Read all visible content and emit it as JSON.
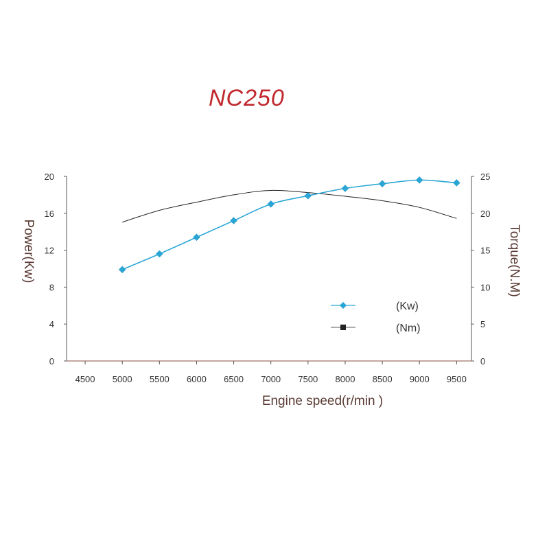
{
  "chart_data": {
    "type": "line",
    "title": "NC250",
    "xlabel": "Engine speed(r/min )",
    "ylabel_left": "Power(Kw)",
    "ylabel_right": "Torque(N.M)",
    "x_ticks": [
      4500,
      5000,
      5500,
      6000,
      6500,
      7000,
      7500,
      8000,
      8500,
      9000,
      9500
    ],
    "xlim": [
      4250,
      9700
    ],
    "ylim_left": [
      0,
      20
    ],
    "ylim_right": [
      0,
      25
    ],
    "y_left_ticks": [
      0,
      4,
      8,
      12,
      16,
      20
    ],
    "y_right_ticks": [
      0,
      5,
      10,
      15,
      20,
      25
    ],
    "grid": false,
    "legend_position": "lower-right",
    "series": [
      {
        "name": "(Kw)",
        "axis": "left",
        "color": "#2aa6d6",
        "marker": "diamond",
        "x": [
          5000,
          5500,
          6000,
          6500,
          7000,
          7500,
          8000,
          8500,
          9000,
          9500
        ],
        "values": [
          9.9,
          11.6,
          13.4,
          15.2,
          17.0,
          17.9,
          18.7,
          19.2,
          19.6,
          19.3
        ]
      },
      {
        "name": "(Nm)",
        "axis": "right",
        "color": "#222222",
        "marker": "square",
        "x": [
          5000,
          5500,
          6000,
          6500,
          7000,
          7500,
          8000,
          8500,
          9000,
          9500
        ],
        "values": [
          18.8,
          20.4,
          21.5,
          22.5,
          23.1,
          22.8,
          22.3,
          21.7,
          20.8,
          19.3
        ]
      }
    ]
  }
}
